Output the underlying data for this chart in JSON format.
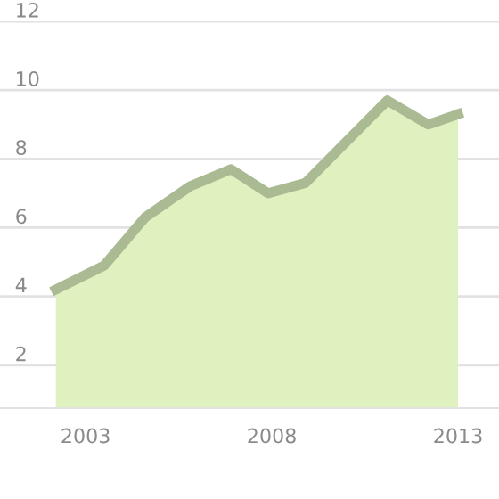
{
  "chart_data": {
    "type": "area",
    "x": [
      2002.2,
      2003.5,
      2004.6,
      2005.8,
      2006.9,
      2007.9,
      2008.9,
      2011.1,
      2012.2,
      2013.0
    ],
    "series": [
      {
        "color": "#e0f1c0",
        "values": [
          4.2,
          4.9,
          6.3,
          7.2,
          7.7,
          7.0,
          7.3,
          9.7,
          9.0,
          9.3
        ]
      }
    ],
    "xlim": [
      2000.7,
      2014.1
    ],
    "ylim": [
      0.75,
      12
    ],
    "xticks": [
      2003,
      2008,
      2013
    ],
    "yticks": [
      2,
      4,
      6,
      8,
      10,
      12
    ],
    "grid": "y"
  }
}
